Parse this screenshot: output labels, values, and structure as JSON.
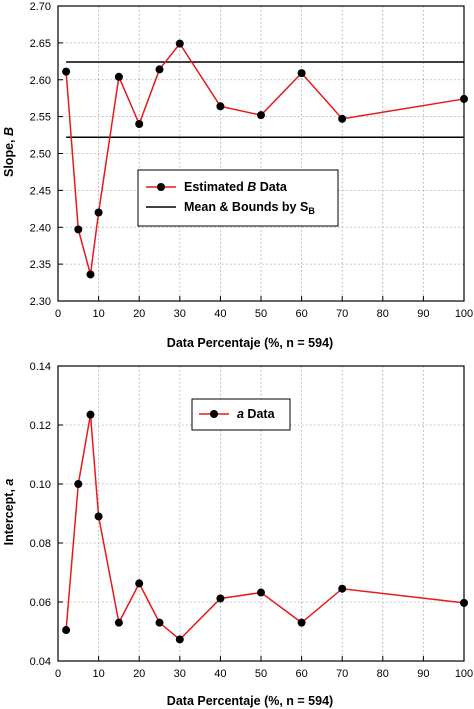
{
  "chart_data": [
    {
      "type": "line",
      "xlabel": "Data Percentaje (%, n = 594)",
      "ylabel_prefix": "Slope, ",
      "ylabel_var": "B",
      "xlim": [
        0,
        100
      ],
      "ylim": [
        2.3,
        2.7
      ],
      "xticks": [
        0,
        10,
        20,
        30,
        40,
        50,
        60,
        70,
        80,
        90,
        100
      ],
      "yticks": [
        "2.30",
        "2.35",
        "2.40",
        "2.45",
        "2.50",
        "2.55",
        "2.60",
        "2.65",
        "2.70"
      ],
      "grid": true,
      "legend_position": "center",
      "series": [
        {
          "legend_prefix": "Estimated ",
          "legend_var": "B",
          "legend_suffix": " Data",
          "color": "#e8191c",
          "marker_color": "#000000",
          "x": [
            2,
            5,
            8,
            10,
            15,
            20,
            25,
            30,
            40,
            50,
            60,
            70,
            100
          ],
          "y": [
            2.611,
            2.397,
            2.336,
            2.42,
            2.604,
            2.54,
            2.614,
            2.649,
            2.564,
            2.552,
            2.609,
            2.547,
            2.574
          ]
        }
      ],
      "reference_lines": {
        "legend_main": "Mean & Bounds by S",
        "legend_sub": "B",
        "color": "#000000",
        "upper": 2.624,
        "lower": 2.522
      }
    },
    {
      "type": "line",
      "xlabel": "Data Percentaje (%, n = 594)",
      "ylabel_prefix": "Intercept, ",
      "ylabel_var": "a",
      "xlim": [
        0,
        100
      ],
      "ylim": [
        0.04,
        0.14
      ],
      "xticks": [
        0,
        10,
        20,
        30,
        40,
        50,
        60,
        70,
        80,
        90,
        100
      ],
      "yticks": [
        "0.04",
        "0.06",
        "0.08",
        "0.10",
        "0.12",
        "0.14"
      ],
      "grid": true,
      "legend_position": "top-center",
      "series": [
        {
          "legend_prefix": "",
          "legend_var": "a",
          "legend_suffix": " Data",
          "color": "#e8191c",
          "marker_color": "#000000",
          "x": [
            2,
            5,
            8,
            10,
            15,
            20,
            25,
            30,
            40,
            50,
            60,
            70,
            100
          ],
          "y": [
            0.0505,
            0.1,
            0.1235,
            0.089,
            0.053,
            0.0663,
            0.053,
            0.0473,
            0.0612,
            0.0632,
            0.053,
            0.0645,
            0.0597
          ]
        }
      ]
    }
  ]
}
